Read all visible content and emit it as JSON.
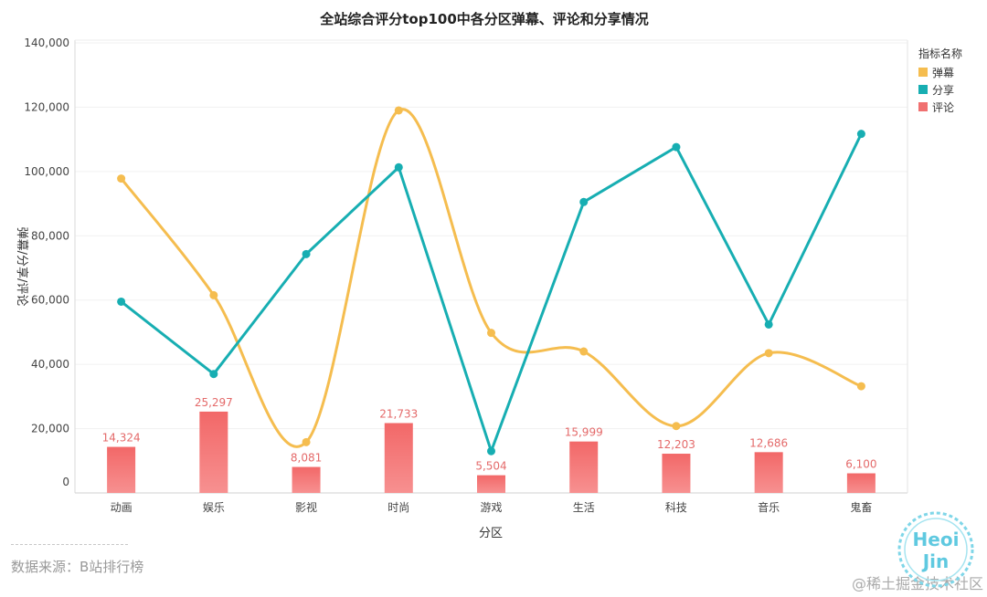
{
  "title": "全站综合评分top100中各分区弹幕、评论和分享情况",
  "source_text": "数据来源：B站排行榜",
  "watermark": "@稀土掘金技术社区",
  "logo_text": [
    "Heoi",
    "Jin"
  ],
  "colors": {
    "danmu": "#f5bd4f",
    "share": "#17aeb2",
    "comment": "#f07070",
    "comment_label": "#e46a6a"
  },
  "chart_data": {
    "type": "bar",
    "title": "全站综合评分top100中各分区弹幕、评论和分享情况",
    "xlabel": "分区",
    "ylabel": "弹幕/分享/评论",
    "categories": [
      "动画",
      "娱乐",
      "影视",
      "时尚",
      "游戏",
      "生活",
      "科技",
      "音乐",
      "鬼畜"
    ],
    "ylim": [
      0,
      140000
    ],
    "yticks": [
      "0",
      "20,000",
      "40,000",
      "60,000",
      "80,000",
      "100,000",
      "120,000",
      "140,000"
    ],
    "ytick_values": [
      0,
      20000,
      40000,
      60000,
      80000,
      100000,
      120000,
      140000
    ],
    "legend_title": "指标名称",
    "legend_position": "top-right",
    "grid": true,
    "series": [
      {
        "name": "弹幕",
        "type": "line-smooth",
        "color": "#f5bd4f",
        "values": [
          97800,
          61500,
          15800,
          119000,
          49800,
          44000,
          20800,
          43500,
          33200
        ]
      },
      {
        "name": "分享",
        "type": "line",
        "color": "#17aeb2",
        "values": [
          59500,
          37000,
          74300,
          101300,
          13000,
          90500,
          107600,
          52400,
          111700
        ]
      },
      {
        "name": "评论",
        "type": "bar",
        "color": "#f07070",
        "values": [
          14324,
          25297,
          8081,
          21733,
          5504,
          15999,
          12203,
          12686,
          6100
        ],
        "labels": [
          "14,324",
          "25,297",
          "8,081",
          "21,733",
          "5,504",
          "15,999",
          "12,203",
          "12,686",
          "6,100"
        ]
      }
    ]
  }
}
